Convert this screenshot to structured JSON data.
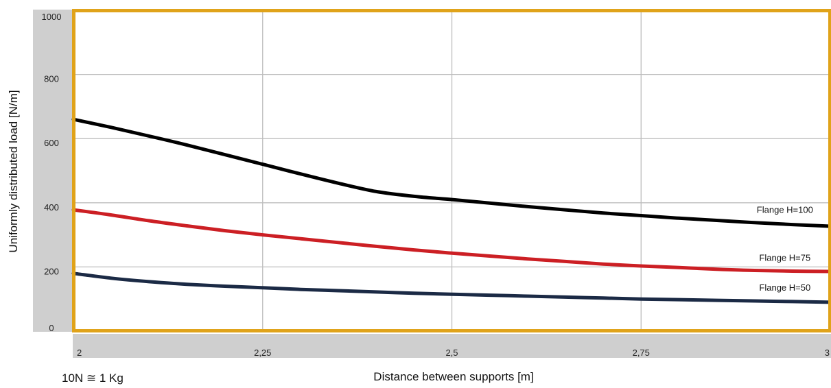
{
  "chart_data": {
    "type": "line",
    "title": "",
    "xlabel": "Distance between supports [m]",
    "ylabel": "Uniformly distributed load [N/m]",
    "note": "10N ≅ 1 Kg",
    "xlim": [
      2,
      3
    ],
    "ylim": [
      0,
      1000
    ],
    "x_ticks": [
      2,
      2.25,
      2.5,
      2.75,
      3
    ],
    "x_tick_labels": [
      "2",
      "2,25",
      "2,5",
      "2,75",
      "3"
    ],
    "y_ticks": [
      0,
      200,
      400,
      600,
      800,
      1000
    ],
    "y_tick_labels": [
      "0",
      "200",
      "400",
      "600",
      "800",
      "1000"
    ],
    "grid": true,
    "series": [
      {
        "name": "Flange H=100",
        "color": "#000000",
        "x": [
          2,
          2.05,
          2.1,
          2.15,
          2.2,
          2.25,
          2.3,
          2.35,
          2.4,
          2.45,
          2.5,
          2.55,
          2.6,
          2.65,
          2.7,
          2.75,
          2.8,
          2.85,
          2.9,
          2.95,
          3
        ],
        "y": [
          660,
          635,
          608,
          580,
          550,
          520,
          490,
          461,
          435,
          420,
          410,
          399,
          388,
          378,
          368,
          360,
          352,
          345,
          338,
          332,
          327
        ]
      },
      {
        "name": "Flange H=75",
        "color": "#cc1f24",
        "x": [
          2,
          2.05,
          2.1,
          2.15,
          2.2,
          2.25,
          2.3,
          2.35,
          2.4,
          2.45,
          2.5,
          2.55,
          2.6,
          2.65,
          2.7,
          2.75,
          2.8,
          2.85,
          2.9,
          2.95,
          3
        ],
        "y": [
          378,
          362,
          344,
          328,
          313,
          300,
          288,
          276,
          264,
          253,
          243,
          234,
          225,
          217,
          209,
          203,
          198,
          193,
          189,
          187,
          186
        ]
      },
      {
        "name": "Flange H=50",
        "color": "#1b2a45",
        "x": [
          2,
          2.05,
          2.1,
          2.15,
          2.2,
          2.25,
          2.3,
          2.35,
          2.4,
          2.45,
          2.5,
          2.55,
          2.6,
          2.65,
          2.7,
          2.75,
          2.8,
          2.85,
          2.9,
          2.95,
          3
        ],
        "y": [
          180,
          165,
          154,
          146,
          140,
          135,
          130,
          126,
          122,
          118,
          115,
          112,
          109,
          106,
          103,
          100,
          98,
          96,
          94,
          92,
          90
        ]
      }
    ],
    "colors": {
      "frame": "#e0a31a",
      "axis_band": "#cfcfcf",
      "grid": "#bdbdbd"
    }
  }
}
